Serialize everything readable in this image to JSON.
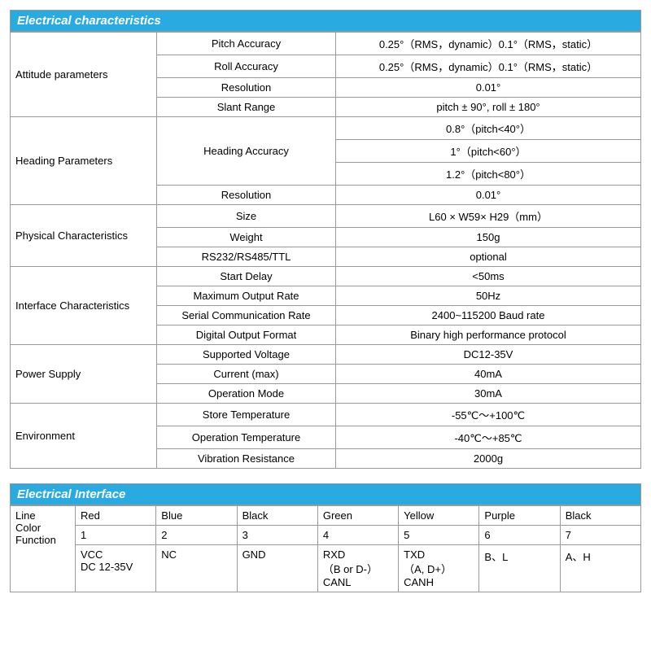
{
  "colors": {
    "header_bg": "#29abe2",
    "header_text": "#ffffff",
    "border": "#999999",
    "text": "#000000"
  },
  "spec_table": {
    "title": "Electrical characteristics",
    "groups": [
      {
        "name": "Attitude parameters",
        "rows": [
          {
            "param": "Pitch Accuracy",
            "value": "0.25°（RMS，dynamic）0.1°（RMS，static）"
          },
          {
            "param": "Roll Accuracy",
            "value": "0.25°（RMS，dynamic）0.1°（RMS，static）"
          },
          {
            "param": "Resolution",
            "value": "0.01°"
          },
          {
            "param": "Slant Range",
            "value": "pitch ± 90°, roll ± 180°"
          }
        ]
      },
      {
        "name": "Heading Parameters",
        "rows": [
          {
            "param": "Heading Accuracy",
            "value": "0.8°（pitch<40°）",
            "param_rowspan": 3
          },
          {
            "param": "",
            "value": "1°（pitch<60°）"
          },
          {
            "param": "",
            "value": "1.2°（pitch<80°）"
          },
          {
            "param": "Resolution",
            "value": "0.01°"
          }
        ]
      },
      {
        "name": "Physical Characteristics",
        "rows": [
          {
            "param": "Size",
            "value": "L60 × W59× H29（mm）"
          },
          {
            "param": "Weight",
            "value": "150g"
          },
          {
            "param": "RS232/RS485/TTL",
            "value": "optional"
          }
        ]
      },
      {
        "name": "Interface Characteristics",
        "rows": [
          {
            "param": "Start Delay",
            "value": "<50ms"
          },
          {
            "param": "Maximum Output Rate",
            "value": "50Hz"
          },
          {
            "param": "Serial Communication Rate",
            "value": "2400~115200 Baud rate"
          },
          {
            "param": "Digital Output Format",
            "value": "Binary high performance protocol"
          }
        ]
      },
      {
        "name": "Power Supply",
        "rows": [
          {
            "param": "Supported Voltage",
            "value": "DC12-35V"
          },
          {
            "param": "Current (max)",
            "value": "40mA"
          },
          {
            "param": "Operation Mode",
            "value": "30mA"
          }
        ]
      },
      {
        "name": "Environment",
        "rows": [
          {
            "param": "Store Temperature",
            "value": "-55℃～+100℃"
          },
          {
            "param": "Operation Temperature",
            "value": "-40℃～+85℃"
          },
          {
            "param": "Vibration Resistance",
            "value": "2000g"
          }
        ]
      }
    ]
  },
  "iface_table": {
    "title": "Electrical Interface",
    "row_labels": [
      "Line Color",
      "",
      "Function"
    ],
    "side_label_lines": [
      "Line",
      "Color",
      "Function"
    ],
    "colors": [
      "Red",
      "Blue",
      "Black",
      "Green",
      "Yellow",
      "Purple",
      "Black"
    ],
    "numbers": [
      "1",
      "2",
      "3",
      "4",
      "5",
      "6",
      "7"
    ],
    "functions": [
      "VCC\nDC 12-35V",
      "NC",
      "GND",
      "RXD\n（B or D-）\nCANL",
      "TXD\n（A, D+）\nCANH",
      "B、L",
      "A、H"
    ]
  }
}
